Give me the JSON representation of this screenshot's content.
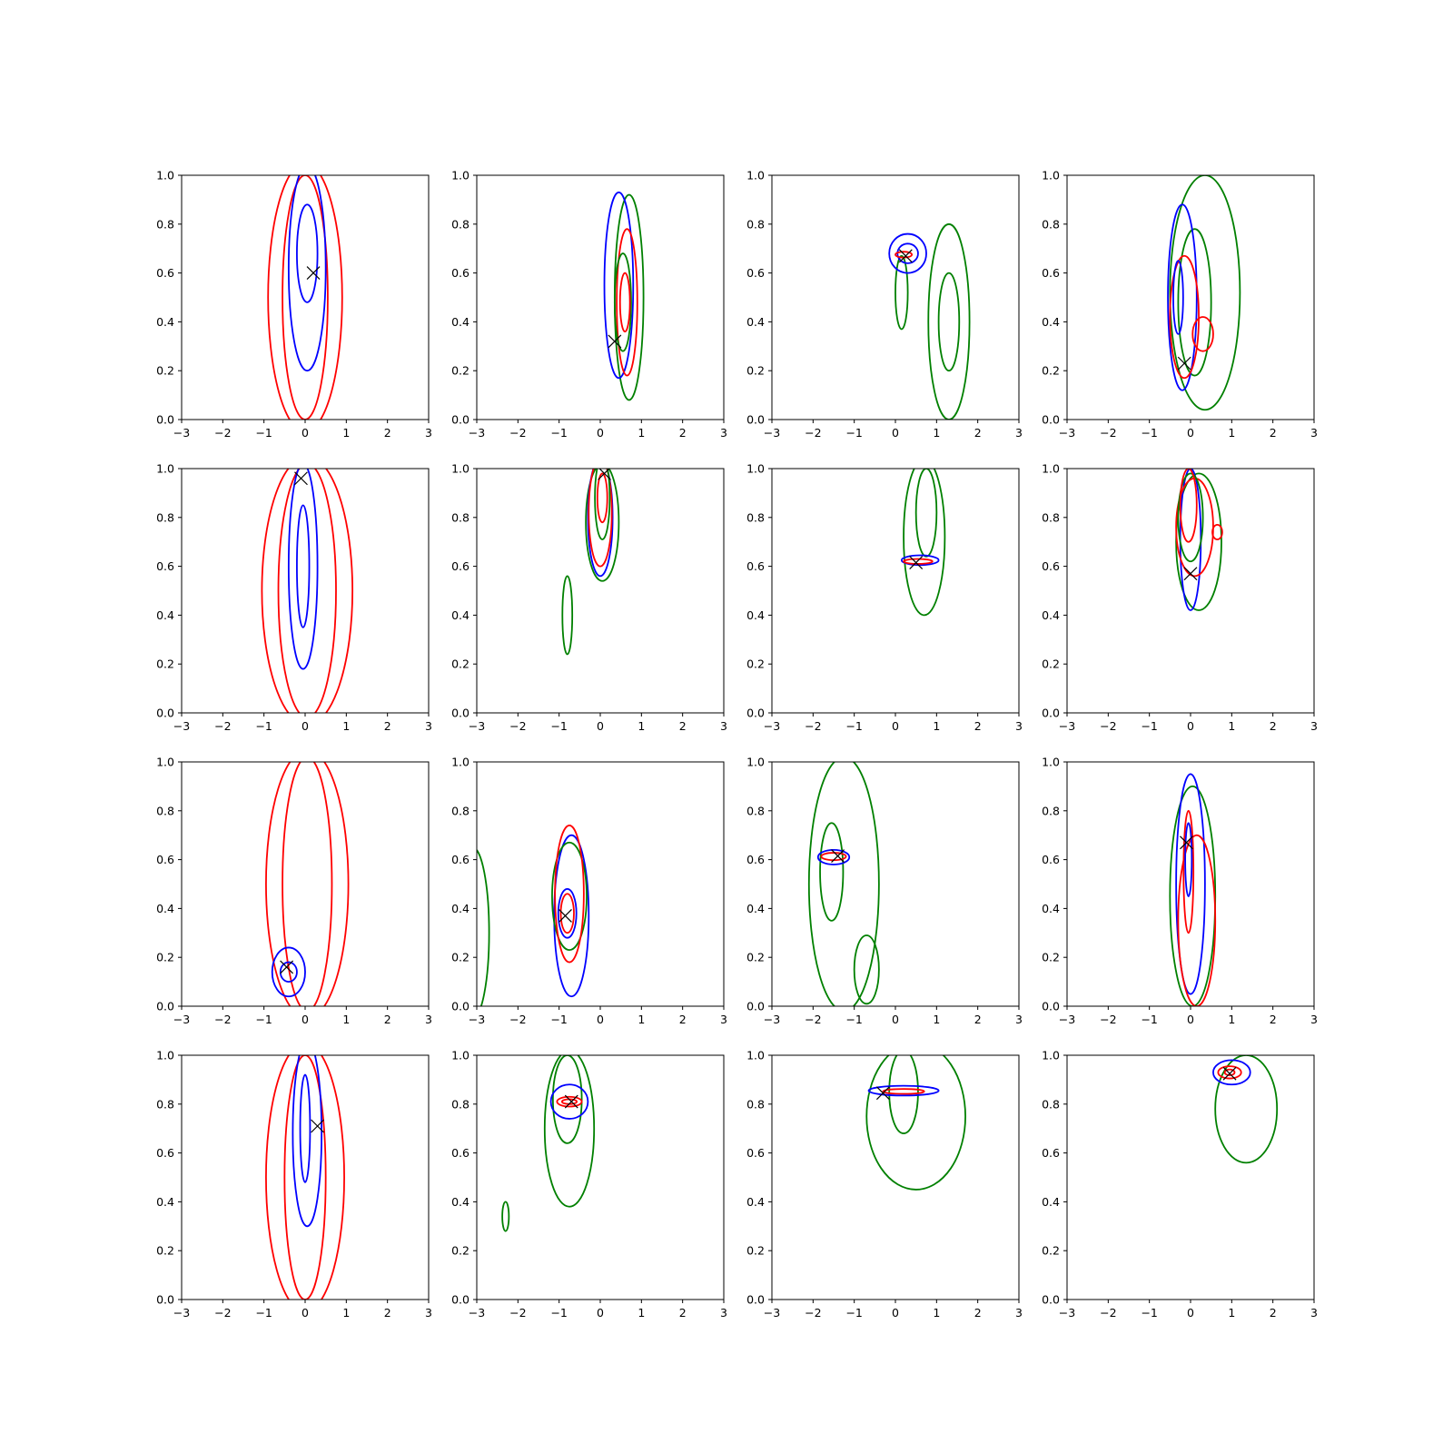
{
  "chart_data": {
    "type": "contour",
    "layout": {
      "rows": 4,
      "cols": 4
    },
    "xlim": [
      -3,
      3
    ],
    "ylim": [
      0,
      1
    ],
    "xticks": [
      -3,
      -2,
      -1,
      0,
      1,
      2,
      3
    ],
    "yticks": [
      0.0,
      0.2,
      0.4,
      0.6,
      0.8,
      1.0
    ],
    "ytick_labels": [
      "0.0",
      "0.2",
      "0.4",
      "0.6",
      "0.8",
      "1.0"
    ],
    "colors": {
      "red": "#ff0000",
      "blue": "#0000ff",
      "green": "#008000",
      "marker": "#000000"
    },
    "panels": [
      {
        "marker": [
          0.2,
          0.6
        ],
        "contours": [
          {
            "color": "red",
            "cx": 0.0,
            "cy": 0.5,
            "rx": 0.9,
            "ry": 0.55
          },
          {
            "color": "red",
            "cx": 0.0,
            "cy": 0.5,
            "rx": 0.55,
            "ry": 0.5
          },
          {
            "color": "blue",
            "cx": 0.05,
            "cy": 0.62,
            "rx": 0.45,
            "ry": 0.42
          },
          {
            "color": "blue",
            "cx": 0.05,
            "cy": 0.68,
            "rx": 0.25,
            "ry": 0.2
          }
        ]
      },
      {
        "marker": [
          0.35,
          0.32
        ],
        "contours": [
          {
            "color": "green",
            "cx": 0.7,
            "cy": 0.5,
            "rx": 0.35,
            "ry": 0.42
          },
          {
            "color": "blue",
            "cx": 0.45,
            "cy": 0.55,
            "rx": 0.35,
            "ry": 0.38
          },
          {
            "color": "red",
            "cx": 0.65,
            "cy": 0.48,
            "rx": 0.25,
            "ry": 0.3
          },
          {
            "color": "green",
            "cx": 0.55,
            "cy": 0.48,
            "rx": 0.2,
            "ry": 0.2
          },
          {
            "color": "red",
            "cx": 0.6,
            "cy": 0.48,
            "rx": 0.12,
            "ry": 0.12
          }
        ]
      },
      {
        "marker": [
          0.25,
          0.67
        ],
        "contours": [
          {
            "color": "green",
            "cx": 1.3,
            "cy": 0.4,
            "rx": 0.5,
            "ry": 0.4
          },
          {
            "color": "green",
            "cx": 1.3,
            "cy": 0.4,
            "rx": 0.25,
            "ry": 0.2
          },
          {
            "color": "green",
            "cx": 0.15,
            "cy": 0.52,
            "rx": 0.15,
            "ry": 0.15
          },
          {
            "color": "blue",
            "cx": 0.3,
            "cy": 0.68,
            "rx": 0.45,
            "ry": 0.08
          },
          {
            "color": "blue",
            "cx": 0.3,
            "cy": 0.68,
            "rx": 0.25,
            "ry": 0.04
          },
          {
            "color": "red",
            "cx": 0.2,
            "cy": 0.675,
            "rx": 0.2,
            "ry": 0.012
          }
        ]
      },
      {
        "marker": [
          -0.15,
          0.23
        ],
        "contours": [
          {
            "color": "green",
            "cx": 0.35,
            "cy": 0.52,
            "rx": 0.85,
            "ry": 0.48
          },
          {
            "color": "green",
            "cx": 0.1,
            "cy": 0.48,
            "rx": 0.4,
            "ry": 0.3
          },
          {
            "color": "blue",
            "cx": -0.2,
            "cy": 0.5,
            "rx": 0.35,
            "ry": 0.38
          },
          {
            "color": "red",
            "cx": -0.15,
            "cy": 0.42,
            "rx": 0.35,
            "ry": 0.25
          },
          {
            "color": "red",
            "cx": 0.3,
            "cy": 0.35,
            "rx": 0.25,
            "ry": 0.07
          },
          {
            "color": "blue",
            "cx": -0.3,
            "cy": 0.5,
            "rx": 0.12,
            "ry": 0.15
          }
        ]
      },
      {
        "marker": [
          -0.1,
          0.96
        ],
        "contours": [
          {
            "color": "red",
            "cx": 0.05,
            "cy": 0.5,
            "rx": 1.1,
            "ry": 0.55
          },
          {
            "color": "red",
            "cx": 0.05,
            "cy": 0.5,
            "rx": 0.7,
            "ry": 0.52
          },
          {
            "color": "blue",
            "cx": -0.05,
            "cy": 0.6,
            "rx": 0.35,
            "ry": 0.42
          },
          {
            "color": "blue",
            "cx": -0.05,
            "cy": 0.6,
            "rx": 0.15,
            "ry": 0.25
          }
        ]
      },
      {
        "marker": [
          0.1,
          0.98
        ],
        "contours": [
          {
            "color": "green",
            "cx": -0.8,
            "cy": 0.4,
            "rx": 0.12,
            "ry": 0.16
          },
          {
            "color": "green",
            "cx": 0.05,
            "cy": 0.78,
            "rx": 0.4,
            "ry": 0.24
          },
          {
            "color": "blue",
            "cx": 0.0,
            "cy": 0.8,
            "rx": 0.3,
            "ry": 0.24
          },
          {
            "color": "red",
            "cx": 0.0,
            "cy": 0.82,
            "rx": 0.28,
            "ry": 0.22
          },
          {
            "color": "green",
            "cx": 0.05,
            "cy": 0.88,
            "rx": 0.18,
            "ry": 0.17
          },
          {
            "color": "red",
            "cx": 0.05,
            "cy": 0.88,
            "rx": 0.12,
            "ry": 0.1
          }
        ]
      },
      {
        "marker": [
          0.5,
          0.615
        ],
        "contours": [
          {
            "color": "green",
            "cx": 0.7,
            "cy": 0.72,
            "rx": 0.5,
            "ry": 0.32
          },
          {
            "color": "green",
            "cx": 0.75,
            "cy": 0.82,
            "rx": 0.25,
            "ry": 0.18
          },
          {
            "color": "blue",
            "cx": 0.6,
            "cy": 0.625,
            "rx": 0.45,
            "ry": 0.02
          },
          {
            "color": "red",
            "cx": 0.55,
            "cy": 0.62,
            "rx": 0.35,
            "ry": 0.01
          }
        ]
      },
      {
        "marker": [
          0.0,
          0.57
        ],
        "contours": [
          {
            "color": "green",
            "cx": 0.2,
            "cy": 0.7,
            "rx": 0.55,
            "ry": 0.28
          },
          {
            "color": "blue",
            "cx": 0.0,
            "cy": 0.71,
            "rx": 0.25,
            "ry": 0.29
          },
          {
            "color": "red",
            "cx": 0.1,
            "cy": 0.76,
            "rx": 0.45,
            "ry": 0.2
          },
          {
            "color": "green",
            "cx": 0.0,
            "cy": 0.8,
            "rx": 0.3,
            "ry": 0.18
          },
          {
            "color": "red",
            "cx": -0.05,
            "cy": 0.85,
            "rx": 0.2,
            "ry": 0.15
          },
          {
            "color": "red",
            "cx": 0.65,
            "cy": 0.74,
            "rx": 0.12,
            "ry": 0.03
          }
        ]
      },
      {
        "marker": [
          -0.45,
          0.16
        ],
        "contours": [
          {
            "color": "red",
            "cx": 0.05,
            "cy": 0.5,
            "rx": 1.0,
            "ry": 0.55
          },
          {
            "color": "red",
            "cx": 0.05,
            "cy": 0.5,
            "rx": 0.6,
            "ry": 0.52
          },
          {
            "color": "blue",
            "cx": -0.4,
            "cy": 0.14,
            "rx": 0.4,
            "ry": 0.1
          },
          {
            "color": "blue",
            "cx": -0.4,
            "cy": 0.14,
            "rx": 0.2,
            "ry": 0.04
          }
        ]
      },
      {
        "marker": [
          -0.85,
          0.37
        ],
        "contours": [
          {
            "color": "green",
            "cx": -3.1,
            "cy": 0.3,
            "rx": 0.4,
            "ry": 0.35
          },
          {
            "color": "blue",
            "cx": -0.7,
            "cy": 0.37,
            "rx": 0.42,
            "ry": 0.33
          },
          {
            "color": "green",
            "cx": -0.75,
            "cy": 0.45,
            "rx": 0.42,
            "ry": 0.22
          },
          {
            "color": "red",
            "cx": -0.75,
            "cy": 0.46,
            "rx": 0.35,
            "ry": 0.28
          },
          {
            "color": "blue",
            "cx": -0.8,
            "cy": 0.38,
            "rx": 0.22,
            "ry": 0.1
          },
          {
            "color": "red",
            "cx": -0.8,
            "cy": 0.38,
            "rx": 0.16,
            "ry": 0.08
          }
        ]
      },
      {
        "marker": [
          -1.4,
          0.615
        ],
        "contours": [
          {
            "color": "green",
            "cx": -1.25,
            "cy": 0.5,
            "rx": 0.85,
            "ry": 0.52
          },
          {
            "color": "green",
            "cx": -0.7,
            "cy": 0.15,
            "rx": 0.3,
            "ry": 0.14
          },
          {
            "color": "green",
            "cx": -1.55,
            "cy": 0.55,
            "rx": 0.28,
            "ry": 0.2
          },
          {
            "color": "blue",
            "cx": -1.5,
            "cy": 0.61,
            "rx": 0.38,
            "ry": 0.03
          },
          {
            "color": "red",
            "cx": -1.5,
            "cy": 0.613,
            "rx": 0.3,
            "ry": 0.015
          }
        ]
      },
      {
        "marker": [
          -0.1,
          0.67
        ],
        "contours": [
          {
            "color": "green",
            "cx": 0.05,
            "cy": 0.45,
            "rx": 0.55,
            "ry": 0.45
          },
          {
            "color": "blue",
            "cx": 0.0,
            "cy": 0.5,
            "rx": 0.35,
            "ry": 0.45
          },
          {
            "color": "red",
            "cx": 0.15,
            "cy": 0.35,
            "rx": 0.45,
            "ry": 0.35
          },
          {
            "color": "red",
            "cx": -0.05,
            "cy": 0.55,
            "rx": 0.12,
            "ry": 0.25
          },
          {
            "color": "blue",
            "cx": -0.05,
            "cy": 0.6,
            "rx": 0.08,
            "ry": 0.15
          }
        ]
      },
      {
        "marker": [
          0.3,
          0.71
        ],
        "contours": [
          {
            "color": "red",
            "cx": 0.0,
            "cy": 0.5,
            "rx": 0.95,
            "ry": 0.55
          },
          {
            "color": "red",
            "cx": 0.0,
            "cy": 0.5,
            "rx": 0.5,
            "ry": 0.5
          },
          {
            "color": "blue",
            "cx": 0.05,
            "cy": 0.68,
            "rx": 0.35,
            "ry": 0.38
          },
          {
            "color": "blue",
            "cx": 0.0,
            "cy": 0.7,
            "rx": 0.12,
            "ry": 0.22
          }
        ]
      },
      {
        "marker": [
          -0.7,
          0.81
        ],
        "contours": [
          {
            "color": "green",
            "cx": -2.3,
            "cy": 0.34,
            "rx": 0.08,
            "ry": 0.06
          },
          {
            "color": "green",
            "cx": -0.75,
            "cy": 0.7,
            "rx": 0.6,
            "ry": 0.32
          },
          {
            "color": "green",
            "cx": -0.8,
            "cy": 0.82,
            "rx": 0.35,
            "ry": 0.18
          },
          {
            "color": "blue",
            "cx": -0.75,
            "cy": 0.81,
            "rx": 0.45,
            "ry": 0.07
          },
          {
            "color": "red",
            "cx": -0.75,
            "cy": 0.81,
            "rx": 0.3,
            "ry": 0.02
          },
          {
            "color": "red",
            "cx": -0.75,
            "cy": 0.81,
            "rx": 0.18,
            "ry": 0.01
          }
        ]
      },
      {
        "marker": [
          -0.3,
          0.845
        ],
        "contours": [
          {
            "color": "green",
            "cx": 0.5,
            "cy": 0.75,
            "rx": 1.2,
            "ry": 0.3
          },
          {
            "color": "green",
            "cx": 0.2,
            "cy": 0.85,
            "rx": 0.35,
            "ry": 0.17
          },
          {
            "color": "blue",
            "cx": 0.2,
            "cy": 0.855,
            "rx": 0.85,
            "ry": 0.02
          },
          {
            "color": "red",
            "cx": 0.2,
            "cy": 0.852,
            "rx": 0.5,
            "ry": 0.01
          }
        ]
      },
      {
        "marker": [
          0.95,
          0.925
        ],
        "contours": [
          {
            "color": "green",
            "cx": 1.35,
            "cy": 0.78,
            "rx": 0.75,
            "ry": 0.22
          },
          {
            "color": "blue",
            "cx": 1.0,
            "cy": 0.93,
            "rx": 0.45,
            "ry": 0.05
          },
          {
            "color": "red",
            "cx": 0.95,
            "cy": 0.93,
            "rx": 0.28,
            "ry": 0.025
          },
          {
            "color": "red",
            "cx": 0.95,
            "cy": 0.93,
            "rx": 0.12,
            "ry": 0.012
          }
        ]
      }
    ]
  }
}
